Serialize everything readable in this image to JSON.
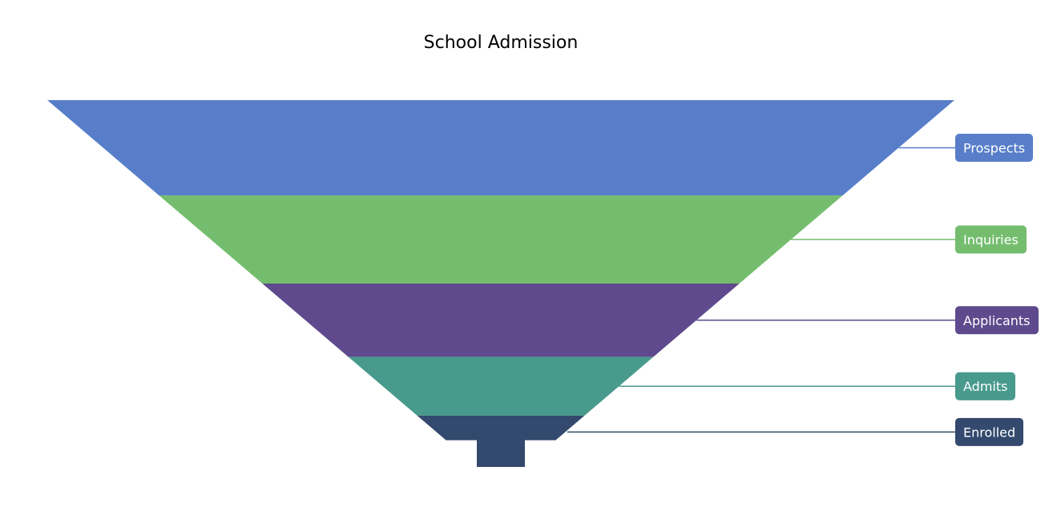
{
  "chart_data": {
    "type": "funnel",
    "title": "School Admission",
    "neck_stage": "Enrolled",
    "categories": [
      "Prospects",
      "Inquiries",
      "Applicants",
      "Admits",
      "Enrolled"
    ],
    "values": [
      13,
      12,
      10,
      8,
      7
    ],
    "colors": [
      "#587ec9",
      "#75bd6e",
      "#5e4a8c",
      "#489a8c",
      "#33496e"
    ],
    "legend": "none",
    "data_labels": "outside-right"
  }
}
